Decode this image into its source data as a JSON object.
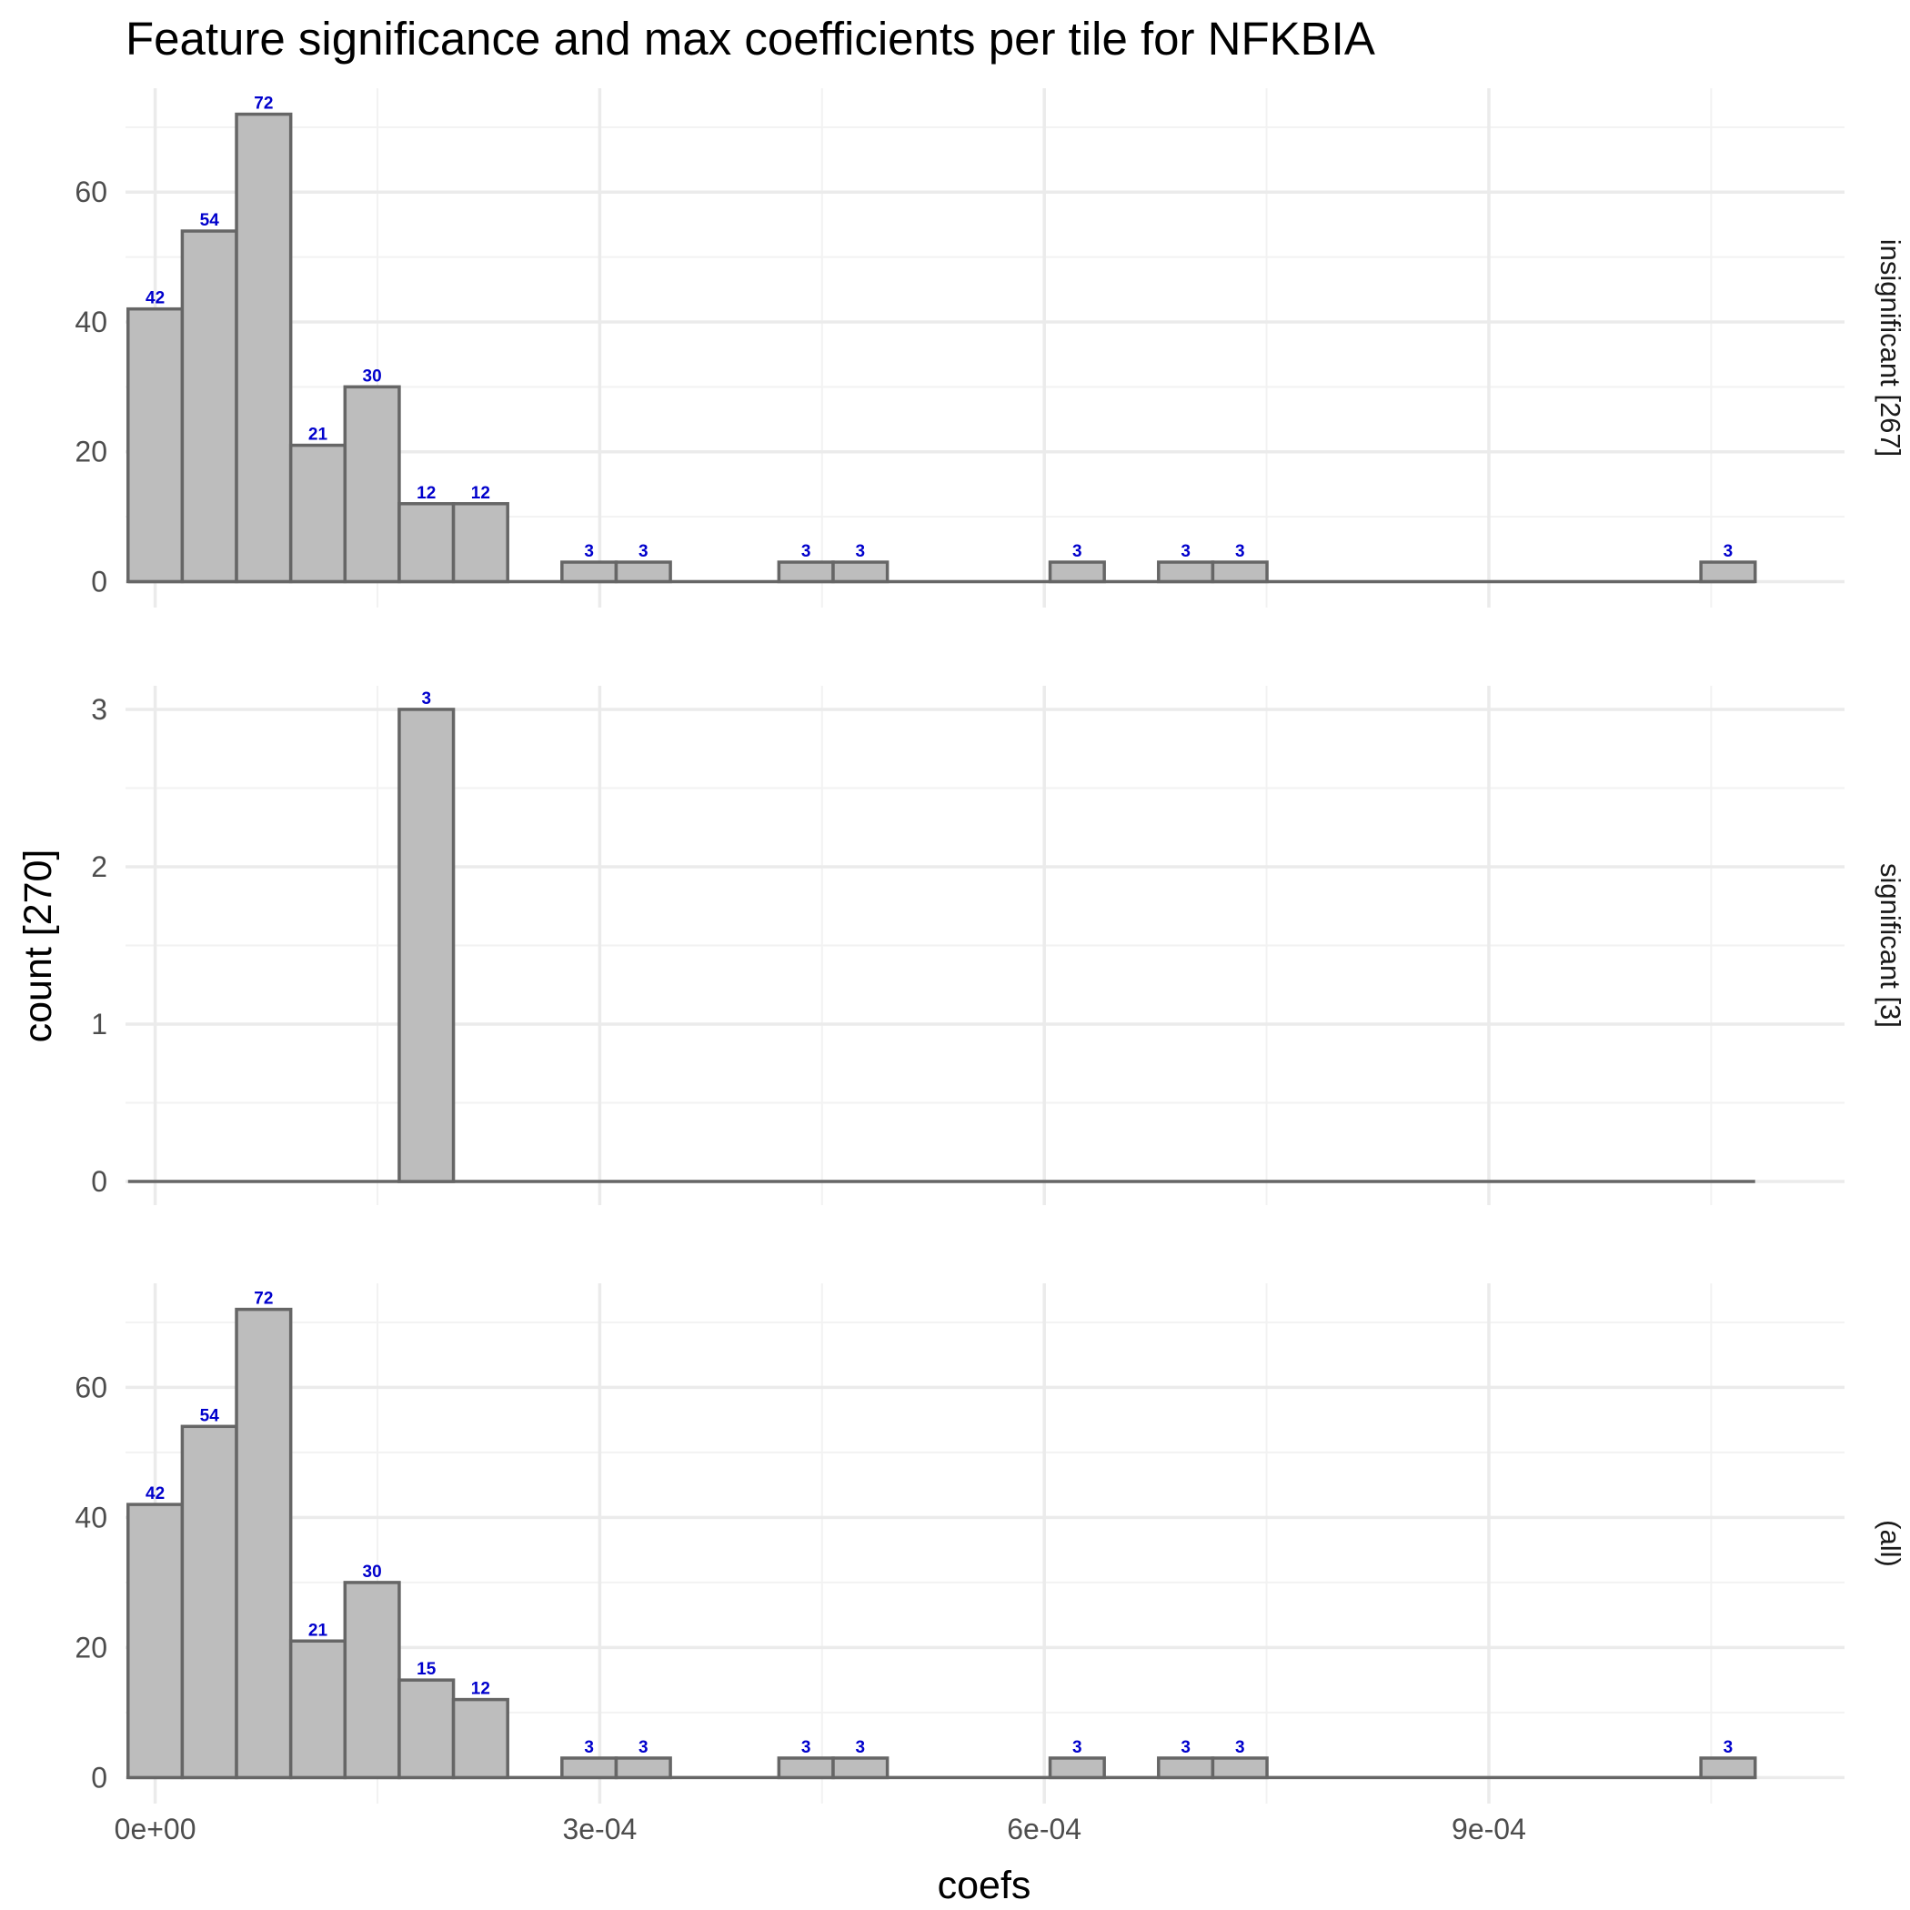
{
  "title": "Feature significance and max coefficients per tile for NFKBIA",
  "chart_data": {
    "type": "bar",
    "title": "Feature significance and max coefficients per tile for NFKBIA",
    "xlabel": "coefs",
    "ylabel": "count [270]",
    "xlim": [
      -2e-05,
      0.00114
    ],
    "x_ticks": [
      {
        "value": 0,
        "label": "0e+00"
      },
      {
        "value": 0.0003,
        "label": "3e-04"
      },
      {
        "value": 0.0006,
        "label": "6e-04"
      },
      {
        "value": 0.0009,
        "label": "9e-04"
      }
    ],
    "bin_width": 3.66e-05,
    "grid": true,
    "panels": [
      {
        "label": "insignificant [267]",
        "ylim": [
          -4,
          76
        ],
        "y_ticks": [
          0,
          20,
          40,
          60
        ],
        "bins": [
          {
            "x": 0.0,
            "count": 42
          },
          {
            "x": 3.66e-05,
            "count": 54
          },
          {
            "x": 7.32e-05,
            "count": 72
          },
          {
            "x": 0.0001098,
            "count": 21
          },
          {
            "x": 0.0001464,
            "count": 30
          },
          {
            "x": 0.000183,
            "count": 12
          },
          {
            "x": 0.0002196,
            "count": 12
          },
          {
            "x": 0.0002928,
            "count": 3
          },
          {
            "x": 0.0003294,
            "count": 3
          },
          {
            "x": 0.0004392,
            "count": 3
          },
          {
            "x": 0.0004758,
            "count": 3
          },
          {
            "x": 0.0006222,
            "count": 3
          },
          {
            "x": 0.0006954,
            "count": 3
          },
          {
            "x": 0.000732,
            "count": 3
          },
          {
            "x": 0.0010614,
            "count": 3
          }
        ]
      },
      {
        "label": "significant [3]",
        "ylim": [
          -0.15,
          3.15
        ],
        "y_ticks": [
          0,
          1,
          2,
          3
        ],
        "bins": [
          {
            "x": 0.000183,
            "count": 3
          }
        ]
      },
      {
        "label": "(all)",
        "ylim": [
          -4,
          76
        ],
        "y_ticks": [
          0,
          20,
          40,
          60
        ],
        "bins": [
          {
            "x": 0.0,
            "count": 42
          },
          {
            "x": 3.66e-05,
            "count": 54
          },
          {
            "x": 7.32e-05,
            "count": 72
          },
          {
            "x": 0.0001098,
            "count": 21
          },
          {
            "x": 0.0001464,
            "count": 30
          },
          {
            "x": 0.000183,
            "count": 15
          },
          {
            "x": 0.0002196,
            "count": 12
          },
          {
            "x": 0.0002928,
            "count": 3
          },
          {
            "x": 0.0003294,
            "count": 3
          },
          {
            "x": 0.0004392,
            "count": 3
          },
          {
            "x": 0.0004758,
            "count": 3
          },
          {
            "x": 0.0006222,
            "count": 3
          },
          {
            "x": 0.0006954,
            "count": 3
          },
          {
            "x": 0.000732,
            "count": 3
          },
          {
            "x": 0.0010614,
            "count": 3
          }
        ]
      }
    ],
    "colors": {
      "bar_fill": "#bdbdbd",
      "bar_stroke": "#666666",
      "data_label": "#0000cc",
      "grid": "#ebebeb"
    }
  }
}
